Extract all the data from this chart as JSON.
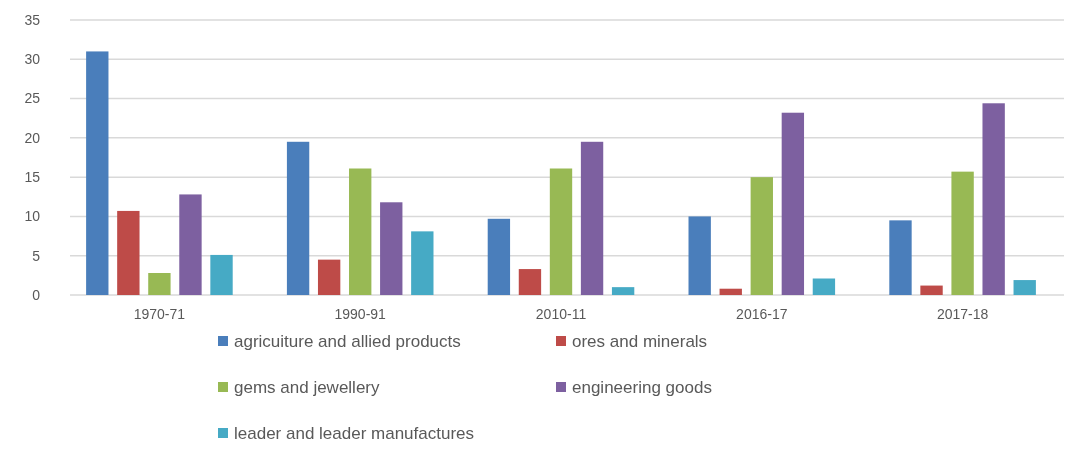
{
  "chart_data": {
    "type": "bar",
    "categories": [
      "1970-71",
      "1990-91",
      "2010-11",
      "2016-17",
      "2017-18"
    ],
    "series": [
      {
        "name": "agricuiture and allied products",
        "color": "#4a7ebb",
        "values": [
          31,
          19.5,
          9.7,
          10,
          9.5
        ]
      },
      {
        "name": "ores and minerals",
        "color": "#be4b48",
        "values": [
          10.7,
          4.5,
          3.3,
          0.8,
          1.2
        ]
      },
      {
        "name": "gems and jewellery",
        "color": "#98b954",
        "values": [
          2.8,
          16.1,
          16.1,
          15,
          15.7
        ]
      },
      {
        "name": "engineering goods",
        "color": "#7d60a0",
        "values": [
          12.8,
          11.8,
          19.5,
          23.2,
          24.4
        ]
      },
      {
        "name": "leader and leader manufactures",
        "color": "#46aac5",
        "values": [
          5.1,
          8.1,
          1,
          2.1,
          1.9
        ]
      }
    ],
    "ylim": [
      0,
      35
    ],
    "yticks": [
      0,
      5,
      10,
      15,
      20,
      25,
      30,
      35
    ],
    "grid": "y",
    "legend": "bottom"
  }
}
